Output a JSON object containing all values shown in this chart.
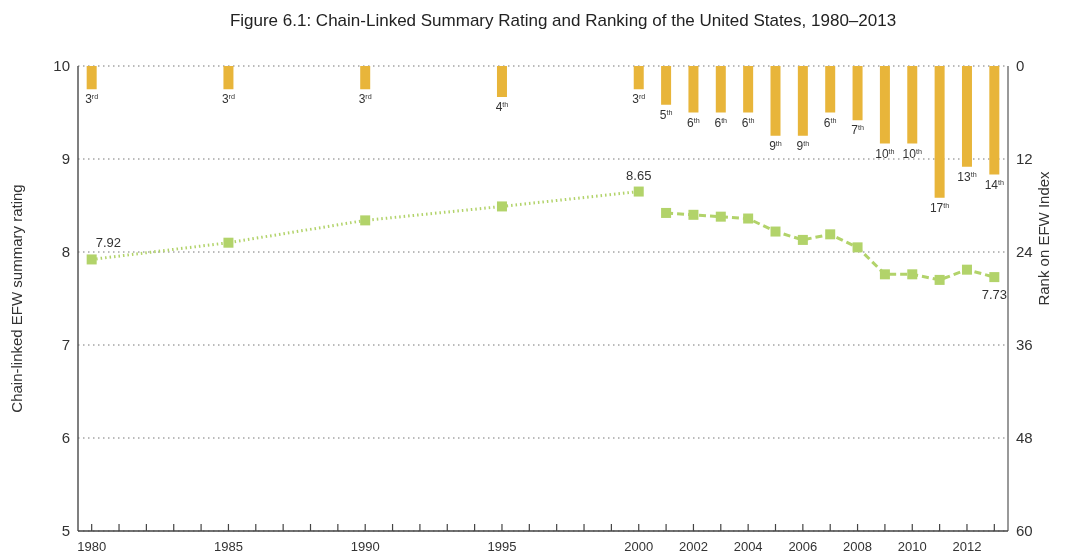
{
  "chart_data": {
    "type": "line",
    "title": "Figure 6.1: Chain-Linked Summary Rating and Ranking of the United States, 1980–2013",
    "ylabel": "Chain-linked EFW summary rating",
    "y2label": "Rank on EFW Index",
    "xlim": [
      1979.5,
      2013.5
    ],
    "xticks": [
      1980,
      {
        "value": 1981,
        "label": null
      },
      {
        "value": 1982,
        "label": null
      },
      {
        "value": 1983,
        "label": null
      },
      {
        "value": 1984,
        "label": null
      },
      1985,
      {
        "value": 1986,
        "label": null
      },
      {
        "value": 1987,
        "label": null
      },
      {
        "value": 1988,
        "label": null
      },
      {
        "value": 1989,
        "label": null
      },
      1990,
      {
        "value": 1991,
        "label": null
      },
      {
        "value": 1992,
        "label": null
      },
      {
        "value": 1993,
        "label": null
      },
      {
        "value": 1994,
        "label": null
      },
      1995,
      {
        "value": 1996,
        "label": null
      },
      {
        "value": 1997,
        "label": null
      },
      {
        "value": 1998,
        "label": null
      },
      {
        "value": 1999,
        "label": null
      },
      2000,
      {
        "value": 2001,
        "label": null
      },
      2002,
      {
        "value": 2003,
        "label": null
      },
      2004,
      {
        "value": 2005,
        "label": null
      },
      2006,
      {
        "value": 2007,
        "label": null
      },
      2008,
      {
        "value": 2009,
        "label": null
      },
      2010,
      {
        "value": 2011,
        "label": null
      },
      2012,
      {
        "value": 2013,
        "label": null
      }
    ],
    "ylim": [
      5,
      10
    ],
    "yticks": [
      5,
      6,
      7,
      8,
      9,
      10
    ],
    "y2lim": [
      60,
      0
    ],
    "y2ticks": [
      0,
      12,
      24,
      36,
      48,
      60
    ],
    "grid": "y",
    "series": [
      {
        "type": "bar",
        "axis": "y2",
        "color": "#e8b53a",
        "x": [
          1980,
          1985,
          1990,
          1995,
          2000,
          2001,
          2002,
          2003,
          2004,
          2005,
          2006,
          2007,
          2008,
          2009,
          2010,
          2011,
          2012,
          2013
        ],
        "values": [
          3,
          3,
          3,
          4,
          3,
          5,
          6,
          6,
          6,
          9,
          9,
          6,
          7,
          10,
          10,
          17,
          13,
          14
        ],
        "value_labels": [
          "3$^{rd}$",
          "3$^{rd}$",
          "3$^{rd}$",
          "4$^{th}$",
          "3$^{rd}$",
          "5$^{th}$",
          "6$^{th}$",
          "6$^{th}$",
          "6$^{th}$",
          "9$^{th}$",
          "9$^{th}$",
          "6$^{th}$",
          "7$^{th}$",
          "10$^{th}$",
          "10$^{th}$",
          "17$^{th}$",
          "13$^{th}$",
          "14$^{th}$"
        ]
      },
      {
        "color": "#b2d36a",
        "line_style": "dotted",
        "marker": "square",
        "x": [
          1980,
          1985,
          1990,
          1995,
          2000
        ],
        "values": [
          7.92,
          8.1,
          8.34,
          8.49,
          8.65
        ],
        "value_labels": [
          "7.92",
          null,
          null,
          null,
          "8.65"
        ]
      },
      {
        "color": "#b2d36a",
        "line_style": "dashed",
        "marker": "square",
        "x": [
          2001,
          2002,
          2003,
          2004,
          2005,
          2006,
          2007,
          2008,
          2009,
          2010,
          2011,
          2012,
          2013
        ],
        "values": [
          8.42,
          8.4,
          8.38,
          8.36,
          8.22,
          8.13,
          8.19,
          8.05,
          7.76,
          7.76,
          7.7,
          7.81,
          7.73
        ],
        "value_labels": [
          null,
          null,
          null,
          null,
          null,
          null,
          null,
          null,
          null,
          null,
          null,
          null,
          "7.73"
        ]
      }
    ]
  }
}
